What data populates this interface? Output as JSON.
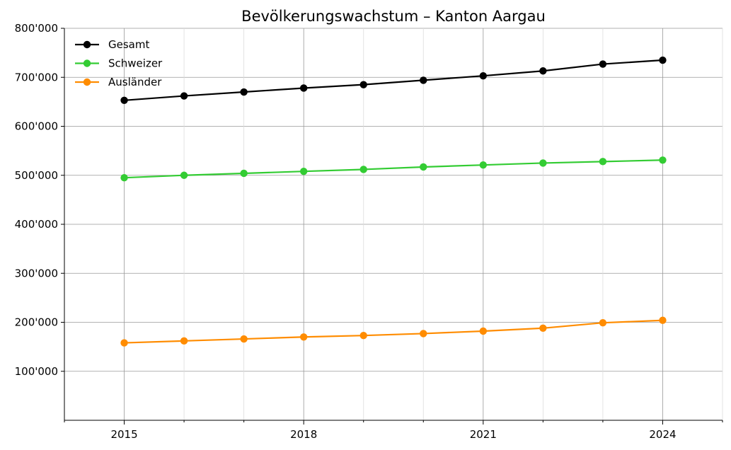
{
  "chart_data": {
    "type": "line",
    "title": "Bevölkerungswachstum – Kanton Aargau",
    "xlabel": "",
    "ylabel": "",
    "x": [
      2015,
      2016,
      2017,
      2018,
      2019,
      2020,
      2021,
      2022,
      2023,
      2024
    ],
    "xlim": [
      2014,
      2025
    ],
    "ylim": [
      0,
      800000
    ],
    "x_major_ticks": [
      2015,
      2018,
      2021,
      2024
    ],
    "x_minor_ticks": [
      2014,
      2016,
      2017,
      2019,
      2020,
      2022,
      2023,
      2025
    ],
    "y_ticks": [
      {
        "value": 100000,
        "label": "100'000"
      },
      {
        "value": 200000,
        "label": "200'000"
      },
      {
        "value": 300000,
        "label": "300'000"
      },
      {
        "value": 400000,
        "label": "400'000"
      },
      {
        "value": 500000,
        "label": "500'000"
      },
      {
        "value": 600000,
        "label": "600'000"
      },
      {
        "value": 700000,
        "label": "700'000"
      },
      {
        "value": 800000,
        "label": "800'000"
      }
    ],
    "grid": true,
    "legend_position": "top-left",
    "series": [
      {
        "name": "Gesamt",
        "color": "#000000",
        "values": [
          653000,
          662000,
          670000,
          678000,
          685000,
          694000,
          703000,
          713000,
          727000,
          735000
        ]
      },
      {
        "name": "Schweizer",
        "color": "#33cc33",
        "values": [
          495000,
          500000,
          504000,
          508000,
          512000,
          517000,
          521000,
          525000,
          528000,
          531000
        ]
      },
      {
        "name": "Ausländer",
        "color": "#ff8c00",
        "values": [
          158000,
          162000,
          166000,
          170000,
          173000,
          177000,
          182000,
          188000,
          199000,
          204000
        ]
      }
    ]
  }
}
